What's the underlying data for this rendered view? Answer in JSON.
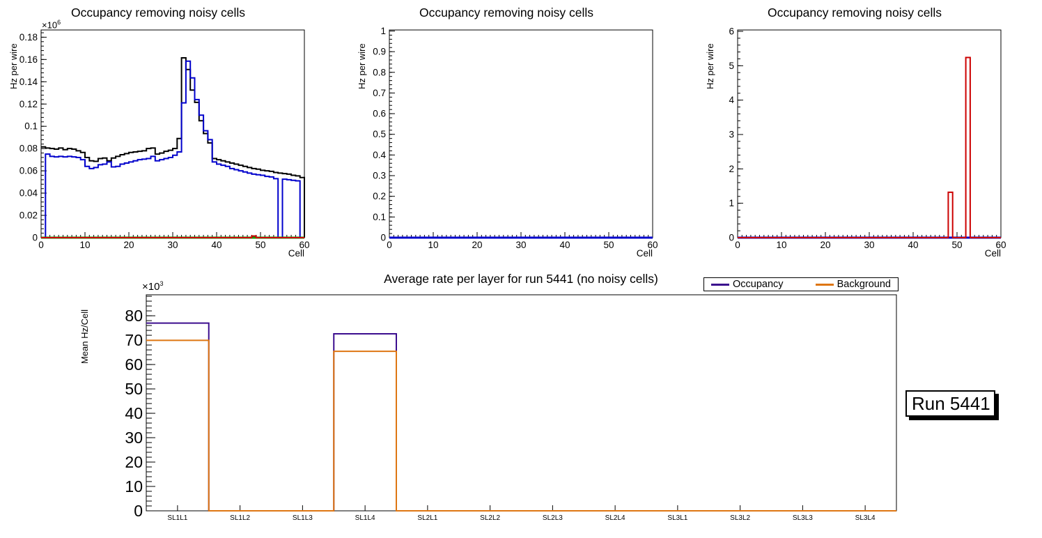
{
  "canvas": {
    "background": "#ffffff"
  },
  "run_label": {
    "text": "Run 5441"
  },
  "colors": {
    "series_black": "#000000",
    "series_blue": "#0000cc",
    "series_green": "#00a000",
    "series_red": "#cc0000",
    "occupancy_purple": "#3b0d8e",
    "background_orange": "#de7612"
  },
  "chart_data": [
    {
      "id": "occupancy-removing-noisy-cells-left",
      "type": "line",
      "subtype": "step-histogram",
      "title": "Occupancy removing noisy cells",
      "xlabel": "Cell",
      "ylabel": "Hz per wire",
      "y_exponent_base": "×10",
      "y_exponent_power": "6",
      "bin_width": 1,
      "x_start": 0,
      "grid": false,
      "x_axis": {
        "min": 0,
        "max": 60,
        "major": [
          0,
          10,
          20,
          30,
          40,
          50,
          60
        ],
        "labels": [
          "0",
          "10",
          "20",
          "30",
          "40",
          "50",
          "60"
        ],
        "minor_step": 1
      },
      "y_axis": {
        "min": 0,
        "max": 0.1865,
        "major": [
          0,
          0.02,
          0.04,
          0.06,
          0.08,
          0.1,
          0.12,
          0.14,
          0.16,
          0.18
        ],
        "labels": [
          "0",
          "0.02",
          "0.04",
          "0.06",
          "0.08",
          "0.1",
          "0.12",
          "0.14",
          "0.16",
          "0.18"
        ],
        "minor_step": 0.004
      },
      "series": [
        {
          "name": "black-occupancy-all-cells",
          "color": "#000000",
          "lw": 2,
          "values": [
            0.0815,
            0.0805,
            0.08,
            0.0795,
            0.0805,
            0.079,
            0.08,
            0.0795,
            0.078,
            0.0765,
            0.072,
            0.069,
            0.0685,
            0.071,
            0.0715,
            0.069,
            0.0715,
            0.073,
            0.0745,
            0.0755,
            0.0765,
            0.077,
            0.0775,
            0.078,
            0.08,
            0.0805,
            0.075,
            0.076,
            0.0775,
            0.0785,
            0.08,
            0.089,
            0.1615,
            0.151,
            0.1325,
            0.1215,
            0.105,
            0.0935,
            0.085,
            0.071,
            0.07,
            0.069,
            0.068,
            0.067,
            0.066,
            0.065,
            0.064,
            0.063,
            0.062,
            0.0615,
            0.0605,
            0.06,
            0.0595,
            0.0585,
            0.058,
            0.0575,
            0.057,
            0.056,
            0.0555,
            0.054
          ]
        },
        {
          "name": "blue-occupancy-no-noisy-cells",
          "color": "#0000cc",
          "lw": 2,
          "values": [
            0,
            0.075,
            0.073,
            0.0725,
            0.073,
            0.0725,
            0.073,
            0.0725,
            0.072,
            0.07,
            0.064,
            0.062,
            0.063,
            0.0655,
            0.066,
            0.068,
            0.0635,
            0.064,
            0.066,
            0.067,
            0.068,
            0.069,
            0.07,
            0.0705,
            0.071,
            0.073,
            0.069,
            0.07,
            0.071,
            0.072,
            0.074,
            0.077,
            0.121,
            0.1585,
            0.1435,
            0.124,
            0.11,
            0.096,
            0.088,
            0.068,
            0.066,
            0.065,
            0.064,
            0.062,
            0.061,
            0.06,
            0.059,
            0.058,
            0.057,
            0.0565,
            0.056,
            0.055,
            0.0545,
            0.053,
            0,
            0.0525,
            0.052,
            0.0515,
            0.051,
            0
          ]
        },
        {
          "name": "green-zero-baseline",
          "color": "#00a000",
          "lw": 3,
          "values_sparse": {
            "length": 60,
            "default": 0,
            "overrides": {}
          }
        },
        {
          "name": "red-noisy-cells",
          "color": "#cc0000",
          "lw": 2,
          "values_sparse": {
            "length": 60,
            "default": 0,
            "overrides": {
              "48": 0.0015
            }
          }
        }
      ],
      "legend": null
    },
    {
      "id": "occupancy-removing-noisy-cells-middle",
      "type": "line",
      "subtype": "step-histogram",
      "title": "Occupancy removing noisy cells",
      "xlabel": "Cell",
      "ylabel": "Hz per wire",
      "y_exponent_base": "",
      "y_exponent_power": "",
      "bin_width": 1,
      "x_start": 0,
      "grid": false,
      "x_axis": {
        "min": 0,
        "max": 60,
        "major": [
          0,
          10,
          20,
          30,
          40,
          50,
          60
        ],
        "labels": [
          "0",
          "10",
          "20",
          "30",
          "40",
          "50",
          "60"
        ],
        "minor_step": 1
      },
      "y_axis": {
        "min": 0,
        "max": 1.005,
        "major": [
          0,
          0.1,
          0.2,
          0.3,
          0.4,
          0.5,
          0.6,
          0.7,
          0.8,
          0.9,
          1
        ],
        "labels": [
          "0",
          "0.1",
          "0.2",
          "0.3",
          "0.4",
          "0.5",
          "0.6",
          "0.7",
          "0.8",
          "0.9",
          "1"
        ],
        "minor_step": 0.02
      },
      "series": [
        {
          "name": "blue-flat-zero",
          "color": "#0000cc",
          "lw": 3,
          "values_sparse": {
            "length": 60,
            "default": 0,
            "overrides": {}
          }
        }
      ],
      "legend": null
    },
    {
      "id": "occupancy-removing-noisy-cells-right",
      "type": "line",
      "subtype": "step-histogram",
      "title": "Occupancy removing noisy cells",
      "xlabel": "Cell",
      "ylabel": "Hz per wire",
      "y_exponent_base": "",
      "y_exponent_power": "",
      "bin_width": 1,
      "x_start": 0,
      "grid": false,
      "x_axis": {
        "min": 0,
        "max": 60,
        "major": [
          0,
          10,
          20,
          30,
          40,
          50,
          60
        ],
        "labels": [
          "0",
          "10",
          "20",
          "30",
          "40",
          "50",
          "60"
        ],
        "minor_step": 1
      },
      "y_axis": {
        "min": 0,
        "max": 6.04,
        "major": [
          0,
          1,
          2,
          3,
          4,
          5,
          6
        ],
        "labels": [
          "0",
          "1",
          "2",
          "3",
          "4",
          "5",
          "6"
        ],
        "minor_step": 0.2
      },
      "series": [
        {
          "name": "blue-flat-zero",
          "color": "#0000cc",
          "lw": 3,
          "values_sparse": {
            "length": 60,
            "default": 0,
            "overrides": {}
          }
        },
        {
          "name": "red-noisy-cell-spikes",
          "color": "#cc0000",
          "lw": 2,
          "values_sparse": {
            "length": 60,
            "default": 0,
            "overrides": {
              "48": 1.32,
              "52": 5.24
            }
          }
        }
      ],
      "legend": null
    },
    {
      "id": "average-rate-per-layer",
      "type": "bar",
      "subtype": "step-histogram",
      "title": "Average rate per layer for run 5441 (no noisy cells)",
      "xlabel": "",
      "ylabel": "Mean Hz/Cell",
      "y_exponent_base": "×10",
      "y_exponent_power": "3",
      "values_unit": "×10³ Hz/Cell",
      "bin_width": 1,
      "x_start": 0,
      "grid": false,
      "categories": [
        "SL1L1",
        "SL1L2",
        "SL1L3",
        "SL1L4",
        "SL2L1",
        "SL2L2",
        "SL2L3",
        "SL2L4",
        "SL3L1",
        "SL3L2",
        "SL3L3",
        "SL3L4"
      ],
      "x_axis": {
        "min": 0,
        "max": 12,
        "major": [
          0.5,
          1.5,
          2.5,
          3.5,
          4.5,
          5.5,
          6.5,
          7.5,
          8.5,
          9.5,
          10.5,
          11.5
        ],
        "labels": [
          "SL1L1",
          "SL1L2",
          "SL1L3",
          "SL1L4",
          "SL2L1",
          "SL2L2",
          "SL2L3",
          "SL2L4",
          "SL3L1",
          "SL3L2",
          "SL3L3",
          "SL3L4"
        ],
        "minor_step": null
      },
      "y_axis": {
        "min": 0,
        "max": 88.6,
        "major": [
          0,
          10,
          20,
          30,
          40,
          50,
          60,
          70,
          80
        ],
        "labels": [
          "0",
          "10",
          "20",
          "30",
          "40",
          "50",
          "60",
          "70",
          "80"
        ],
        "minor_step": 2
      },
      "series": [
        {
          "name": "Occupancy",
          "color": "#3b0d8e",
          "lw": 2,
          "values": [
            77,
            0,
            0,
            72.6,
            0,
            0,
            0,
            0,
            0,
            0,
            0,
            0
          ]
        },
        {
          "name": "Background",
          "color": "#de7612",
          "lw": 2,
          "values": [
            69.9,
            0,
            0,
            65.4,
            0,
            0,
            0,
            0,
            0,
            0,
            0,
            0
          ]
        }
      ],
      "legend": {
        "position": "top-right",
        "entries": [
          {
            "label": "Occupancy",
            "color": "#3b0d8e"
          },
          {
            "label": "Background",
            "color": "#de7612"
          }
        ]
      }
    }
  ]
}
